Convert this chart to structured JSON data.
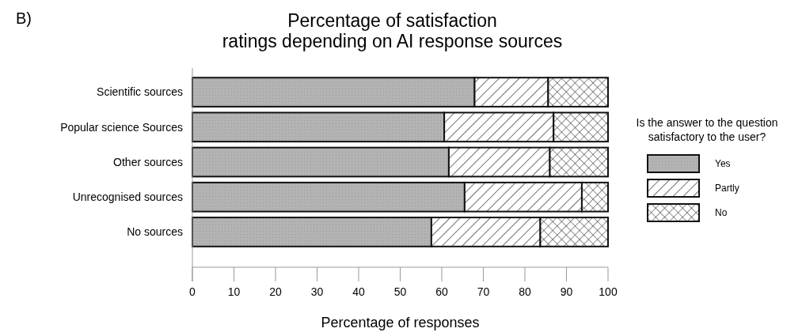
{
  "chart_data": {
    "type": "bar",
    "orientation": "horizontal",
    "stacked": true,
    "title": "Percentage of satisfaction\nratings depending on AI response sources",
    "xlabel": "Percentage of responses",
    "legend_title": "Is the answer to the question\nsatisfactory to the user?",
    "legend": "right",
    "annotations": [
      "B)"
    ],
    "categories": [
      "Scientific sources",
      "Popular science Sources",
      "Other sources",
      "Unrecognised sources",
      "No sources"
    ],
    "series": [
      {
        "name": "Yes",
        "color": "#b3b3b3",
        "values": [
          67.9,
          60.6,
          61.7,
          65.5,
          57.5
        ]
      },
      {
        "name": "Partly",
        "color": "#ffffff",
        "values": [
          17.7,
          26.3,
          24.3,
          28.2,
          26.2
        ]
      },
      {
        "name": "No",
        "color": "#ffffff",
        "values": [
          14.4,
          13.1,
          14.0,
          6.3,
          16.3
        ]
      }
    ],
    "xlim": [
      0,
      100
    ],
    "xticks": [
      0,
      10,
      20,
      30,
      40,
      50,
      60,
      70,
      80,
      90,
      100
    ],
    "grid": false
  }
}
